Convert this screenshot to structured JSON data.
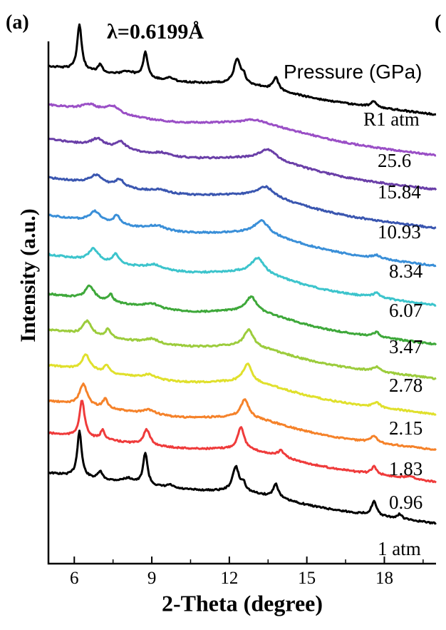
{
  "panel_label": "(a)",
  "next_panel_fragment": "(",
  "chart_data": {
    "type": "line",
    "annotation": "λ=0.6199Å",
    "xlabel": "2-Theta (degree)",
    "ylabel": "Intensity (a.u.)",
    "xlim": [
      5,
      20
    ],
    "xticks": [
      "6",
      "9",
      "12",
      "15",
      "18"
    ],
    "legend_title": "Pressure (GPa)",
    "grid": false,
    "series": [
      {
        "name": "1 atm",
        "color": "#000000",
        "peaks": [
          [
            6.2,
            30,
            0.1
          ],
          [
            7.0,
            5,
            0.1
          ],
          [
            8.1,
            3,
            0.3
          ],
          [
            8.75,
            21,
            0.1
          ],
          [
            9.7,
            2,
            0.15
          ],
          [
            12.25,
            16,
            0.15
          ],
          [
            12.55,
            5,
            0.1
          ],
          [
            13.8,
            9,
            0.12
          ],
          [
            17.6,
            9,
            0.12
          ],
          [
            18.6,
            3,
            0.1
          ]
        ],
        "base": [
          [
            5,
            8
          ],
          [
            10,
            6
          ],
          [
            20,
            2
          ]
        ],
        "humps": [
          [
            12.8,
            4,
            2.0
          ]
        ]
      },
      {
        "name": "0.96",
        "color": "#ef3b3b",
        "peaks": [
          [
            6.3,
            24,
            0.12
          ],
          [
            7.1,
            6,
            0.1
          ],
          [
            8.8,
            10,
            0.15
          ],
          [
            12.45,
            15,
            0.15
          ],
          [
            14.0,
            4,
            0.15
          ],
          [
            17.6,
            5,
            0.12
          ],
          [
            19.0,
            2,
            0.2
          ]
        ],
        "base": [
          [
            5,
            6
          ],
          [
            10,
            5
          ],
          [
            20,
            2
          ]
        ],
        "humps": [
          [
            12.8,
            5,
            2.0
          ]
        ]
      },
      {
        "name": "1.83",
        "color": "#f5822a",
        "peaks": [
          [
            6.35,
            14,
            0.18
          ],
          [
            7.2,
            6,
            0.12
          ],
          [
            8.9,
            3,
            0.3
          ],
          [
            12.6,
            12,
            0.18
          ],
          [
            17.6,
            4,
            0.15
          ]
        ],
        "base": [
          [
            5,
            6
          ],
          [
            10,
            4
          ],
          [
            20,
            2
          ]
        ],
        "humps": [
          [
            12.8,
            6,
            2.0
          ]
        ]
      },
      {
        "name": "2.15",
        "color": "#e0e02c",
        "peaks": [
          [
            6.45,
            10,
            0.2
          ],
          [
            7.25,
            5,
            0.12
          ],
          [
            8.9,
            3,
            0.3
          ],
          [
            12.7,
            12,
            0.2
          ],
          [
            17.7,
            3,
            0.15
          ]
        ],
        "base": [
          [
            5,
            6
          ],
          [
            10,
            4
          ],
          [
            20,
            2
          ]
        ],
        "humps": [
          [
            12.9,
            6,
            2.0
          ]
        ]
      },
      {
        "name": "2.78",
        "color": "#9ccc3c",
        "peaks": [
          [
            6.5,
            9,
            0.2
          ],
          [
            7.3,
            5,
            0.12
          ],
          [
            9.0,
            3,
            0.35
          ],
          [
            12.75,
            11,
            0.22
          ],
          [
            17.7,
            3,
            0.15
          ]
        ],
        "base": [
          [
            5,
            6
          ],
          [
            10,
            4
          ],
          [
            20,
            2
          ]
        ],
        "humps": [
          [
            12.9,
            6,
            2.0
          ]
        ]
      },
      {
        "name": "3.47",
        "color": "#3ea83a",
        "peaks": [
          [
            6.6,
            9,
            0.22
          ],
          [
            7.4,
            5,
            0.12
          ],
          [
            9.0,
            3,
            0.35
          ],
          [
            12.85,
            10,
            0.25
          ],
          [
            17.7,
            3,
            0.15
          ]
        ],
        "base": [
          [
            5,
            6
          ],
          [
            10,
            4
          ],
          [
            20,
            2
          ]
        ],
        "humps": [
          [
            13.0,
            6,
            2.0
          ]
        ]
      },
      {
        "name": "6.07",
        "color": "#3cc4cc",
        "peaks": [
          [
            6.75,
            8,
            0.22
          ],
          [
            7.6,
            6,
            0.15
          ],
          [
            9.1,
            3,
            0.4
          ],
          [
            13.1,
            10,
            0.3
          ],
          [
            17.7,
            3,
            0.18
          ]
        ],
        "base": [
          [
            5,
            6
          ],
          [
            10,
            4
          ],
          [
            20,
            2
          ]
        ],
        "humps": [
          [
            13.0,
            6,
            2.0
          ]
        ]
      },
      {
        "name": "8.34",
        "color": "#3a8fd8",
        "peaks": [
          [
            6.8,
            7,
            0.25
          ],
          [
            7.65,
            6,
            0.15
          ],
          [
            9.2,
            3,
            0.4
          ],
          [
            13.25,
            9,
            0.35
          ],
          [
            17.7,
            2,
            0.2
          ]
        ],
        "base": [
          [
            5,
            6
          ],
          [
            10,
            4
          ],
          [
            20,
            2
          ]
        ],
        "humps": [
          [
            13.1,
            6,
            2.2
          ]
        ]
      },
      {
        "name": "10.93",
        "color": "#3a56b0",
        "peaks": [
          [
            6.85,
            6,
            0.3
          ],
          [
            7.75,
            5,
            0.2
          ],
          [
            9.3,
            2,
            0.4
          ],
          [
            13.4,
            7,
            0.4
          ]
        ],
        "base": [
          [
            5,
            6
          ],
          [
            10,
            4
          ],
          [
            20,
            2
          ]
        ],
        "humps": [
          [
            13.2,
            6,
            2.3
          ]
        ]
      },
      {
        "name": "15.84",
        "color": "#6a3fa8",
        "peaks": [
          [
            6.9,
            5,
            0.3
          ],
          [
            7.8,
            5,
            0.25
          ],
          [
            9.4,
            2,
            0.4
          ],
          [
            13.5,
            7,
            0.4
          ]
        ],
        "base": [
          [
            5,
            6
          ],
          [
            10,
            3
          ],
          [
            20,
            2
          ]
        ],
        "humps": [
          [
            13.3,
            6,
            2.3
          ]
        ]
      },
      {
        "name": "25.6",
        "color": "#9a4fc6",
        "peaks": [
          [
            6.6,
            4,
            0.4
          ],
          [
            7.5,
            5,
            0.35
          ],
          [
            13.0,
            3,
            0.6
          ]
        ],
        "base": [
          [
            5,
            6
          ],
          [
            10,
            3
          ],
          [
            20,
            2
          ]
        ],
        "humps": [
          [
            13.2,
            6,
            2.6
          ]
        ]
      },
      {
        "name": "R1 atm",
        "color": "#000000",
        "peaks": [
          [
            6.2,
            30,
            0.1
          ],
          [
            7.0,
            5,
            0.1
          ],
          [
            8.1,
            3,
            0.3
          ],
          [
            8.75,
            17,
            0.1
          ],
          [
            9.7,
            2,
            0.15
          ],
          [
            12.3,
            16,
            0.15
          ],
          [
            12.55,
            5,
            0.1
          ],
          [
            13.8,
            8,
            0.12
          ],
          [
            17.6,
            4,
            0.12
          ]
        ],
        "base": [
          [
            5,
            8
          ],
          [
            10,
            6
          ],
          [
            20,
            2
          ]
        ],
        "humps": [
          [
            12.8,
            4,
            2.0
          ]
        ]
      }
    ]
  }
}
